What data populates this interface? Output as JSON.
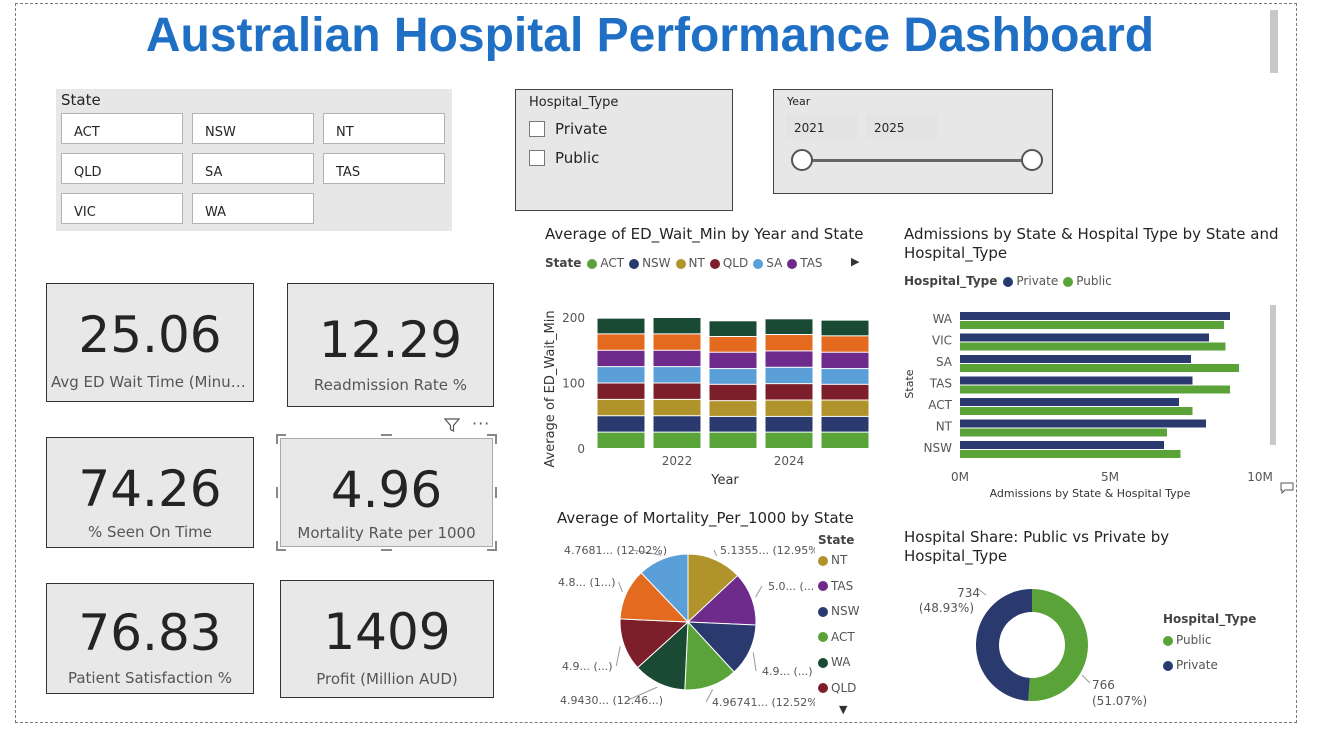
{
  "title": "Australian Hospital Performance Dashboard",
  "colors": {
    "ACT": "#5aa339",
    "NSW": "#2b3a6e",
    "NT": "#b0932a",
    "QLD": "#7d1f2b",
    "SA": "#5b9fd9",
    "TAS": "#6e2b8b",
    "WA": "#1b4a34",
    "orange": "#e46a1f",
    "Private": "#2b3a6e",
    "Public": "#5aa339",
    "title": "#1f6fc5"
  },
  "state_slicer": {
    "title": "State",
    "items": [
      "ACT",
      "NSW",
      "NT",
      "QLD",
      "SA",
      "TAS",
      "VIC",
      "WA"
    ]
  },
  "type_slicer": {
    "title": "Hospital_Type",
    "options": [
      "Private",
      "Public"
    ]
  },
  "year_slicer": {
    "title": "Year",
    "from": "2021",
    "to": "2025"
  },
  "cards": [
    {
      "value": "25.06",
      "label": "Avg ED Wait Time (Minut..."
    },
    {
      "value": "12.29",
      "label": "Readmission Rate %"
    },
    {
      "value": "74.26",
      "label": "% Seen On Time"
    },
    {
      "value": "4.96",
      "label": "Mortality Rate per 1000"
    },
    {
      "value": "76.83",
      "label": "Patient Satisfaction %"
    },
    {
      "value": "1409",
      "label": "Profit (Million AUD)"
    }
  ],
  "chart_data": [
    {
      "type": "bar",
      "stacked": true,
      "title": "Average of ED_Wait_Min by Year and State",
      "legend_title": "State",
      "legend": [
        "ACT",
        "NSW",
        "NT",
        "QLD",
        "SA",
        "TAS"
      ],
      "xlabel": "Year",
      "ylabel": "Average of ED_Wait_Min",
      "ylim": [
        0,
        200
      ],
      "yticks": [
        "0",
        "100",
        "200"
      ],
      "categories": [
        "2021",
        "2022",
        "2023",
        "2024",
        "2025"
      ],
      "xtick_labels": [
        "",
        "2022",
        "",
        "2024",
        ""
      ],
      "series": [
        {
          "name": "ACT",
          "values": [
            25,
            25,
            25,
            25,
            25
          ]
        },
        {
          "name": "NSW",
          "values": [
            25,
            25,
            24,
            24,
            24
          ]
        },
        {
          "name": "NT",
          "values": [
            25,
            25,
            24,
            25,
            25
          ]
        },
        {
          "name": "QLD",
          "values": [
            25,
            25,
            25,
            25,
            24
          ]
        },
        {
          "name": "SA",
          "values": [
            25,
            25,
            24,
            25,
            24
          ]
        },
        {
          "name": "TAS",
          "values": [
            25,
            25,
            25,
            25,
            25
          ]
        },
        {
          "name": "",
          "values": [
            25,
            25,
            24,
            25,
            25
          ]
        },
        {
          "name": "",
          "values": [
            24,
            25,
            24,
            24,
            24
          ]
        }
      ]
    },
    {
      "type": "bar",
      "orientation": "horizontal",
      "title": "Admissions by State & Hospital Type by State and Hospital_Type",
      "legend_title": "Hospital_Type",
      "legend": [
        "Private",
        "Public"
      ],
      "xlabel": "Admissions by State & Hospital Type",
      "ylabel": "State",
      "xlim": [
        0,
        10000000
      ],
      "xticks": [
        "0M",
        "5M",
        "10M"
      ],
      "categories": [
        "WA",
        "VIC",
        "SA",
        "TAS",
        "ACT",
        "NT",
        "NSW"
      ],
      "series": [
        {
          "name": "Private",
          "values": [
            9000000,
            8300000,
            7700000,
            7750000,
            7300000,
            8200000,
            6800000
          ]
        },
        {
          "name": "Public",
          "values": [
            8800000,
            8850000,
            9300000,
            9000000,
            7750000,
            6900000,
            7350000
          ]
        }
      ]
    },
    {
      "type": "pie",
      "title": "Average of Mortality_Per_1000 by State",
      "legend_title": "State",
      "legend": [
        "NT",
        "TAS",
        "NSW",
        "ACT",
        "WA",
        "QLD"
      ],
      "slices": [
        {
          "label": "NT",
          "value": 5.1355,
          "text": "5.1355... (12.95%)"
        },
        {
          "label": "TAS",
          "value": 5.0,
          "text": "5.0... (...)"
        },
        {
          "label": "NSW",
          "value": 4.9,
          "text": "4.9... (...)"
        },
        {
          "label": "ACT",
          "value": 4.96741,
          "text": "4.96741... (12.52%)"
        },
        {
          "label": "WA",
          "value": 4.943,
          "text": "4.9430... (12.46...)"
        },
        {
          "label": "QLD",
          "value": 4.9,
          "text": "4.9... (...)"
        },
        {
          "label": "",
          "value": 4.8,
          "text": "4.8... (1...)"
        },
        {
          "label": "",
          "value": 4.7681,
          "text": "4.7681... (12.02%)"
        }
      ]
    },
    {
      "type": "pie",
      "donut": true,
      "title": "Hospital Share: Public vs Private by Hospital_Type",
      "legend_title": "Hospital_Type",
      "legend": [
        "Public",
        "Private"
      ],
      "slices": [
        {
          "label": "Public",
          "value": 766,
          "text_value": "766",
          "text_pct": "(51.07%)"
        },
        {
          "label": "Private",
          "value": 734,
          "text_value": "734",
          "text_pct": "(48.93%)"
        }
      ]
    }
  ]
}
